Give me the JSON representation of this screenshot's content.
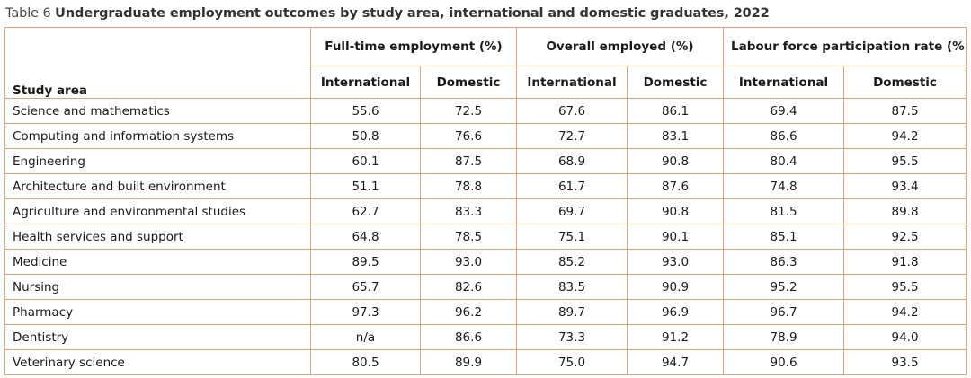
{
  "caption": {
    "label": "Table 6",
    "title": "Undergraduate employment outcomes by study area, international and domestic graduates, 2022"
  },
  "header": {
    "row_label": "Study area",
    "groups": [
      "Full-time employment (%)",
      "Overall employed (%)",
      "Labour force participation rate (%)"
    ],
    "subheaders": [
      "International",
      "Domestic",
      "International",
      "Domestic",
      "International",
      "Domestic"
    ]
  },
  "rows": [
    {
      "area": "Science and mathematics",
      "values": [
        "55.6",
        "72.5",
        "67.6",
        "86.1",
        "69.4",
        "87.5"
      ]
    },
    {
      "area": "Computing and information systems",
      "values": [
        "50.8",
        "76.6",
        "72.7",
        "83.1",
        "86.6",
        "94.2"
      ]
    },
    {
      "area": "Engineering",
      "values": [
        "60.1",
        "87.5",
        "68.9",
        "90.8",
        "80.4",
        "95.5"
      ]
    },
    {
      "area": "Architecture and built environment",
      "values": [
        "51.1",
        "78.8",
        "61.7",
        "87.6",
        "74.8",
        "93.4"
      ]
    },
    {
      "area": "Agriculture and environmental studies",
      "values": [
        "62.7",
        "83.3",
        "69.7",
        "90.8",
        "81.5",
        "89.8"
      ]
    },
    {
      "area": "Health services and support",
      "values": [
        "64.8",
        "78.5",
        "75.1",
        "90.1",
        "85.1",
        "92.5"
      ]
    },
    {
      "area": "Medicine",
      "values": [
        "89.5",
        "93.0",
        "85.2",
        "93.0",
        "86.3",
        "91.8"
      ]
    },
    {
      "area": "Nursing",
      "values": [
        "65.7",
        "82.6",
        "83.5",
        "90.9",
        "95.2",
        "95.5"
      ]
    },
    {
      "area": "Pharmacy",
      "values": [
        "97.3",
        "96.2",
        "89.7",
        "96.9",
        "96.7",
        "94.2"
      ]
    },
    {
      "area": "Dentistry",
      "values": [
        "n/a",
        "86.6",
        "73.3",
        "91.2",
        "78.9",
        "94.0"
      ]
    },
    {
      "area": "Veterinary science",
      "values": [
        "80.5",
        "89.9",
        "75.0",
        "94.7",
        "90.6",
        "93.5"
      ]
    }
  ],
  "colors": {
    "border": "#e3a279",
    "caption_text": "#4a4a4a"
  }
}
